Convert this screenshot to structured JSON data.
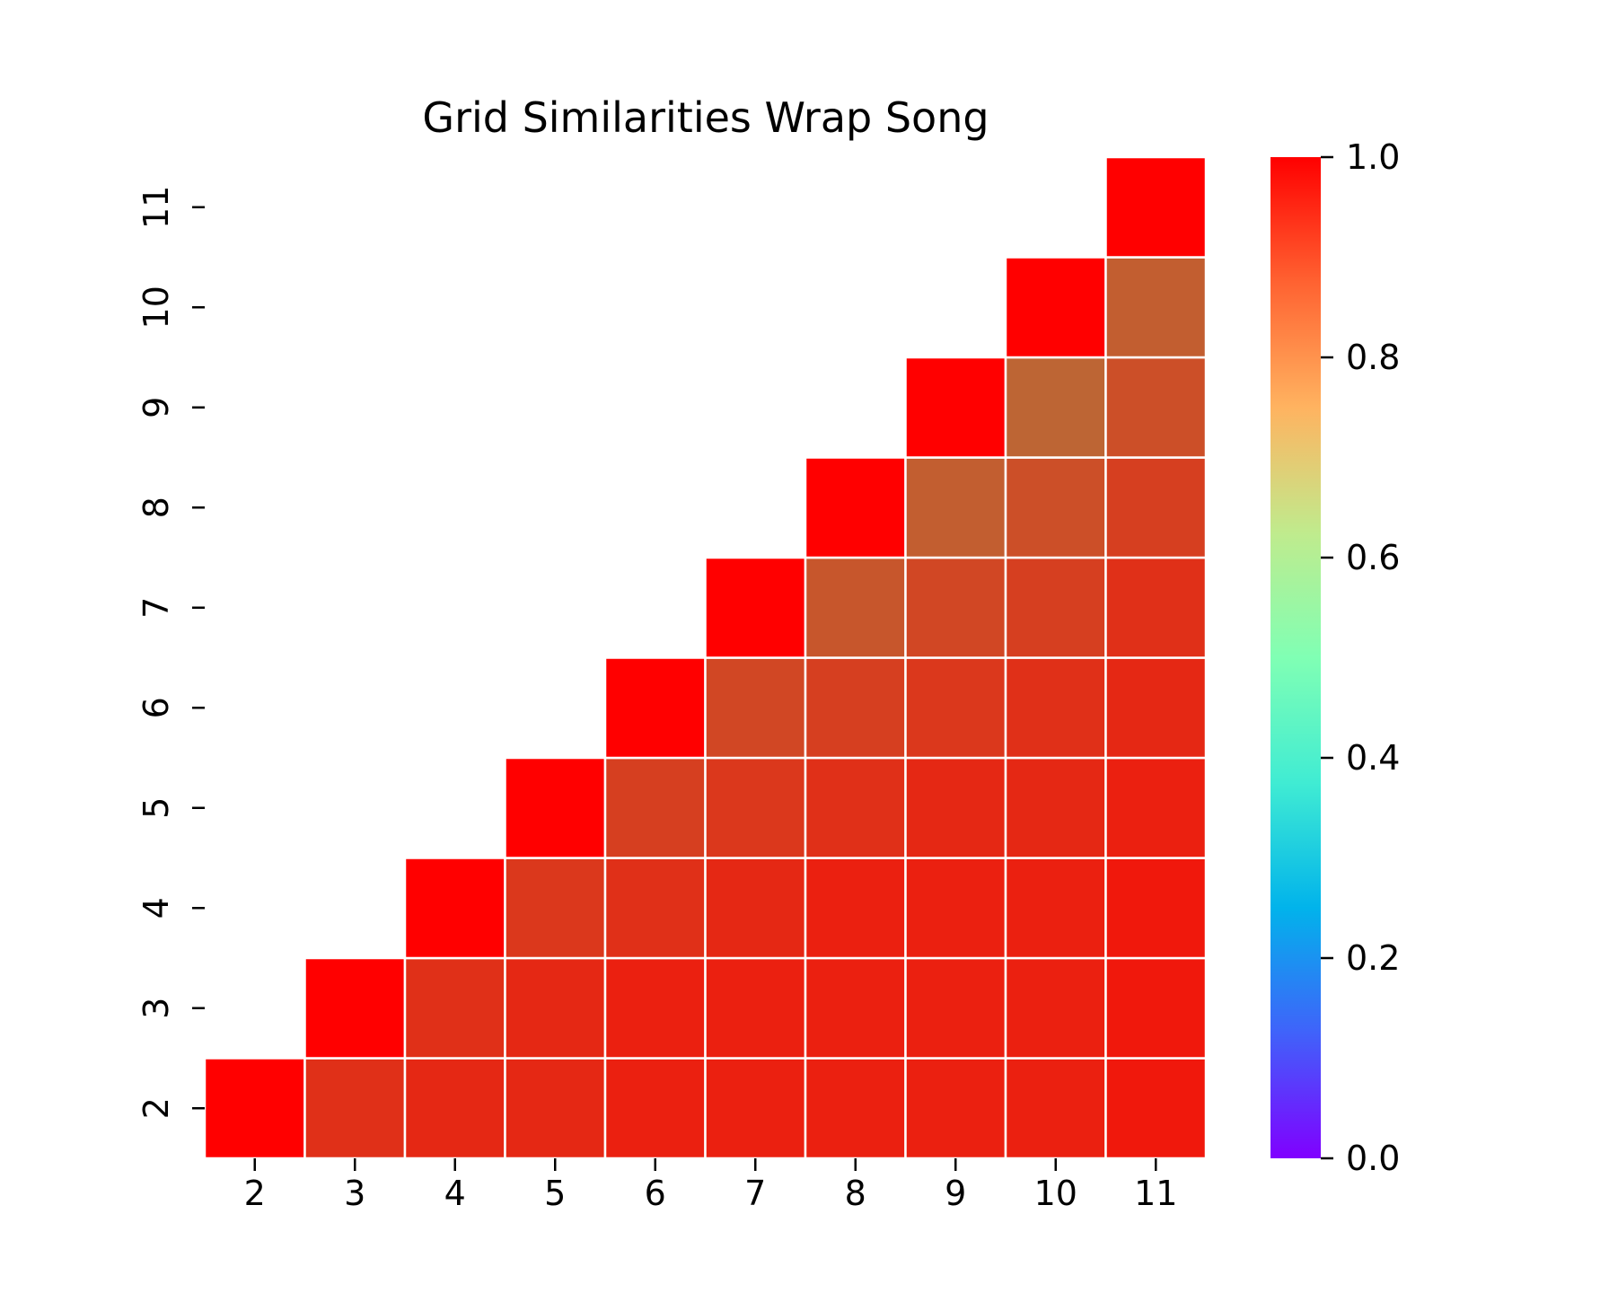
{
  "chart_data": {
    "type": "heatmap",
    "title": "Grid Similarities Wrap Song",
    "xlabel": "",
    "ylabel": "",
    "x_categories": [
      "2",
      "3",
      "4",
      "5",
      "6",
      "7",
      "8",
      "9",
      "10",
      "11"
    ],
    "y_categories": [
      "2",
      "3",
      "4",
      "5",
      "6",
      "7",
      "8",
      "9",
      "10",
      "11"
    ],
    "mask": "lower-triangle (cells with column < row are empty)",
    "matrix": [
      [
        1.0,
        0.94,
        0.95,
        0.95,
        0.96,
        0.96,
        0.96,
        0.96,
        0.96,
        0.97
      ],
      [
        null,
        1.0,
        0.94,
        0.95,
        0.96,
        0.96,
        0.96,
        0.96,
        0.96,
        0.97
      ],
      [
        null,
        null,
        1.0,
        0.93,
        0.94,
        0.95,
        0.96,
        0.96,
        0.96,
        0.97
      ],
      [
        null,
        null,
        null,
        1.0,
        0.92,
        0.93,
        0.94,
        0.95,
        0.95,
        0.96
      ],
      [
        null,
        null,
        null,
        null,
        1.0,
        0.91,
        0.92,
        0.93,
        0.94,
        0.95
      ],
      [
        null,
        null,
        null,
        null,
        null,
        1.0,
        0.89,
        0.91,
        0.92,
        0.94
      ],
      [
        null,
        null,
        null,
        null,
        null,
        null,
        1.0,
        0.88,
        0.9,
        0.92
      ],
      [
        null,
        null,
        null,
        null,
        null,
        null,
        null,
        1.0,
        0.87,
        0.9
      ],
      [
        null,
        null,
        null,
        null,
        null,
        null,
        null,
        null,
        1.0,
        0.88
      ],
      [
        null,
        null,
        null,
        null,
        null,
        null,
        null,
        null,
        null,
        1.0
      ]
    ],
    "colorbar": {
      "min": 0.0,
      "max": 1.0,
      "ticks": [
        "0.0",
        "0.2",
        "0.4",
        "0.6",
        "0.8",
        "1.0"
      ],
      "colormap": "rainbow"
    },
    "cell_border_color": "#ffffff"
  }
}
